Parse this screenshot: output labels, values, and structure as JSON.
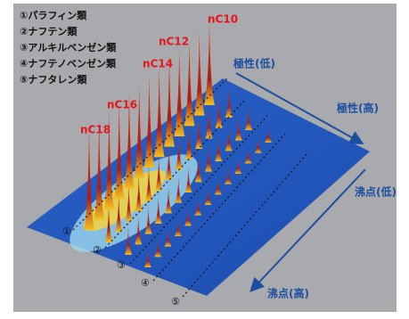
{
  "legend": [
    "①パラフィン類",
    "②ナフテン類",
    "③アルキルベンゼン類",
    "④ナフテノベンゼン類",
    "⑤ナフタレン類"
  ],
  "peak_labels": [
    "nC10",
    "nC12",
    "nC14",
    "nC16",
    "nC18"
  ],
  "axis_labels": {
    "polarity_low": "極性(低)",
    "polarity_high": "極性(高)",
    "boiling_low": "沸点(低)",
    "boiling_high": "沸点(高)"
  },
  "region_markers": [
    "①",
    "②",
    "③",
    "④",
    "⑤"
  ]
}
